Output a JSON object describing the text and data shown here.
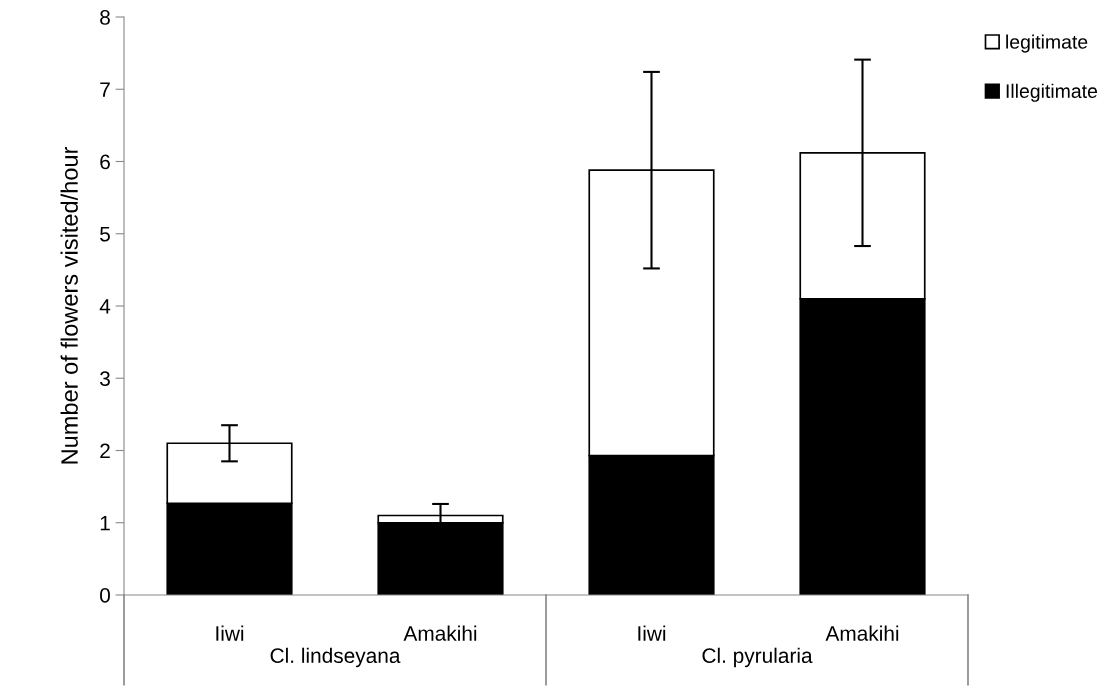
{
  "chart_data": {
    "type": "bar",
    "stacked": true,
    "ylabel": "Number of flowers visited/hour",
    "categories": [
      "Iiwi",
      "Amakihi",
      "Iiwi",
      "Amakihi"
    ],
    "series": [
      {
        "name": "Illegitimate",
        "color": "#000000",
        "values": [
          1.27,
          1.0,
          1.93,
          4.1
        ]
      },
      {
        "name": "legitimate",
        "color": "#ffffff",
        "values": [
          0.83,
          0.1,
          3.95,
          2.02
        ],
        "errors": [
          0.25,
          0.16,
          1.36,
          1.29
        ]
      }
    ],
    "annotations": [
      "Cl. lindseyana",
      "Cl. pyrularia"
    ],
    "ylim": [
      0,
      8
    ],
    "yticks": [
      0,
      1,
      2,
      3,
      4,
      5,
      6,
      7,
      8
    ],
    "grid": false,
    "legend": "top right"
  }
}
